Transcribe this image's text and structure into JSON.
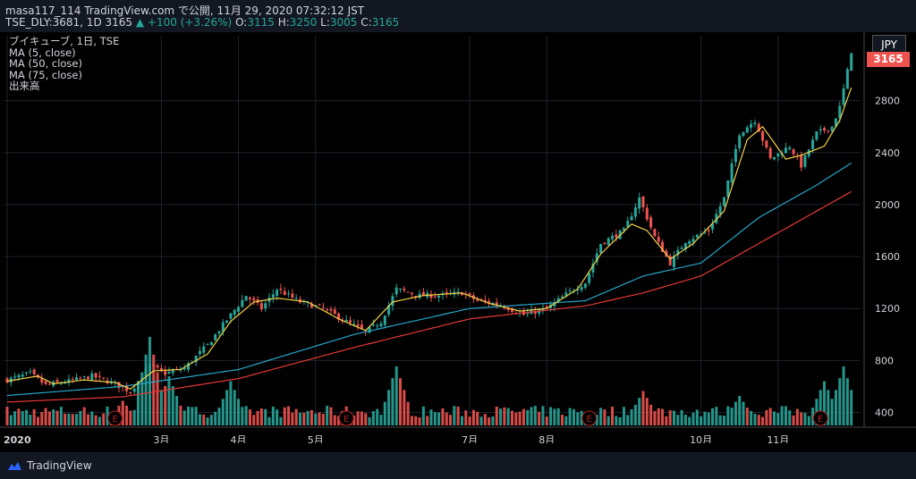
{
  "header": {
    "line1": "masa117_114 TradingView.com で公開, 11月 29, 2020 07:32:12 JST",
    "symbol": "TSE_DLY:3681, 1D 3165",
    "change": "▲ +100 (+3.26%)",
    "o_label": "O:",
    "o_value": "3115",
    "h_label": "H:",
    "h_value": "3250",
    "l_label": "L:",
    "l_value": "3005",
    "c_label": "C:",
    "c_value": "3165"
  },
  "legend": {
    "title": "ブイキューブ, 1日, TSE",
    "ma5": "MA (5, close)",
    "ma50": "MA (50, close)",
    "ma75": "MA (75, close)",
    "volume": "出来高"
  },
  "price_axis": {
    "currency": "JPY",
    "last_price": "3165"
  },
  "footer": {
    "brand": "TradingView"
  },
  "colors": {
    "up": "#26a69a",
    "down": "#ef5350",
    "ma5": "#f5d142",
    "ma50": "#26a6c8",
    "ma75": "#e53935",
    "grid": "#1e222d"
  },
  "chart_data": {
    "type": "candlestick",
    "title": "ブイキューブ, 1日, TSE",
    "y_ticks": [
      400,
      800,
      1200,
      1600,
      2000,
      2400,
      2800
    ],
    "y_range": [
      300,
      3300
    ],
    "x_labels": [
      "2020",
      "3月",
      "4月",
      "5月",
      "7月",
      "8月",
      "10月",
      "11月"
    ],
    "x_label_days": [
      0,
      40,
      60,
      80,
      120,
      140,
      180,
      200
    ],
    "last_close": 3165,
    "days": 220,
    "close_keypoints": [
      [
        0,
        650
      ],
      [
        6,
        700
      ],
      [
        10,
        610
      ],
      [
        16,
        640
      ],
      [
        22,
        680
      ],
      [
        28,
        620
      ],
      [
        32,
        560
      ],
      [
        37,
        760
      ],
      [
        41,
        700
      ],
      [
        46,
        740
      ],
      [
        52,
        920
      ],
      [
        58,
        1150
      ],
      [
        62,
        1300
      ],
      [
        66,
        1200
      ],
      [
        70,
        1350
      ],
      [
        76,
        1250
      ],
      [
        82,
        1200
      ],
      [
        88,
        1100
      ],
      [
        93,
        1020
      ],
      [
        97,
        1100
      ],
      [
        101,
        1350
      ],
      [
        107,
        1300
      ],
      [
        112,
        1300
      ],
      [
        118,
        1320
      ],
      [
        122,
        1260
      ],
      [
        128,
        1230
      ],
      [
        134,
        1150
      ],
      [
        140,
        1200
      ],
      [
        146,
        1330
      ],
      [
        150,
        1400
      ],
      [
        154,
        1700
      ],
      [
        160,
        1800
      ],
      [
        164,
        2050
      ],
      [
        168,
        1750
      ],
      [
        172,
        1550
      ],
      [
        176,
        1720
      ],
      [
        182,
        1800
      ],
      [
        186,
        2050
      ],
      [
        190,
        2550
      ],
      [
        194,
        2650
      ],
      [
        198,
        2350
      ],
      [
        203,
        2450
      ],
      [
        206,
        2300
      ],
      [
        210,
        2550
      ],
      [
        214,
        2600
      ],
      [
        216,
        2750
      ],
      [
        219,
        3165
      ]
    ],
    "ma5_keypoints": [
      [
        0,
        640
      ],
      [
        8,
        680
      ],
      [
        12,
        620
      ],
      [
        20,
        650
      ],
      [
        28,
        630
      ],
      [
        32,
        580
      ],
      [
        38,
        720
      ],
      [
        45,
        730
      ],
      [
        52,
        850
      ],
      [
        58,
        1100
      ],
      [
        64,
        1250
      ],
      [
        70,
        1280
      ],
      [
        78,
        1250
      ],
      [
        86,
        1120
      ],
      [
        93,
        1030
      ],
      [
        100,
        1250
      ],
      [
        108,
        1300
      ],
      [
        118,
        1320
      ],
      [
        125,
        1240
      ],
      [
        133,
        1180
      ],
      [
        140,
        1200
      ],
      [
        148,
        1350
      ],
      [
        154,
        1620
      ],
      [
        162,
        1850
      ],
      [
        166,
        1800
      ],
      [
        172,
        1580
      ],
      [
        178,
        1700
      ],
      [
        186,
        1950
      ],
      [
        192,
        2500
      ],
      [
        196,
        2600
      ],
      [
        202,
        2350
      ],
      [
        206,
        2380
      ],
      [
        212,
        2450
      ],
      [
        216,
        2650
      ],
      [
        219,
        2900
      ]
    ],
    "ma50_keypoints": [
      [
        0,
        530
      ],
      [
        30,
        600
      ],
      [
        60,
        730
      ],
      [
        90,
        1000
      ],
      [
        120,
        1200
      ],
      [
        150,
        1260
      ],
      [
        165,
        1450
      ],
      [
        180,
        1550
      ],
      [
        195,
        1900
      ],
      [
        210,
        2150
      ],
      [
        219,
        2320
      ]
    ],
    "ma75_keypoints": [
      [
        0,
        480
      ],
      [
        30,
        520
      ],
      [
        60,
        660
      ],
      [
        90,
        900
      ],
      [
        120,
        1120
      ],
      [
        150,
        1220
      ],
      [
        165,
        1320
      ],
      [
        180,
        1450
      ],
      [
        195,
        1700
      ],
      [
        210,
        1950
      ],
      [
        219,
        2100
      ]
    ],
    "volume_peaks": [
      [
        30,
        0.25
      ],
      [
        37,
        0.9
      ],
      [
        42,
        0.5
      ],
      [
        58,
        0.45
      ],
      [
        101,
        0.6
      ],
      [
        165,
        0.35
      ],
      [
        190,
        0.3
      ],
      [
        212,
        0.45
      ],
      [
        217,
        0.6
      ]
    ],
    "earnings_marker": "E",
    "earnings_days": [
      28,
      88,
      151,
      211
    ]
  }
}
